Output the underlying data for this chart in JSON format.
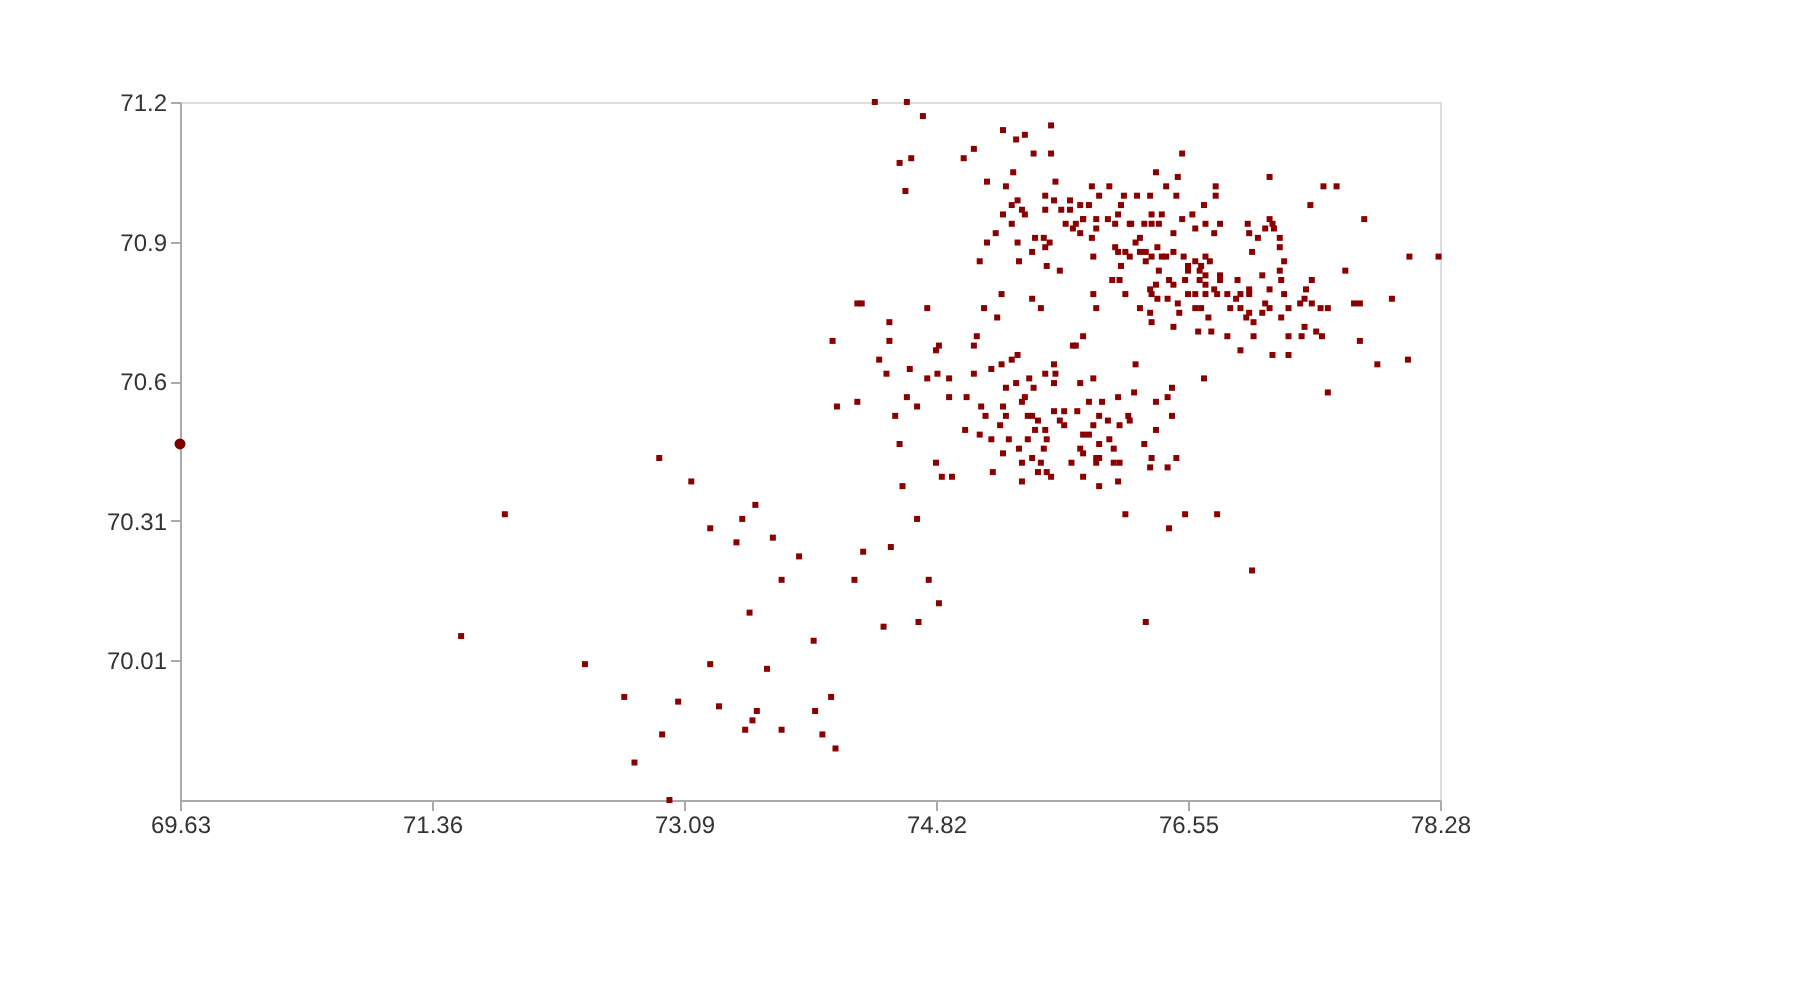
{
  "chart_data": {
    "type": "scatter",
    "xlim": [
      69.63,
      78.28
    ],
    "xticks": [
      69.63,
      71.36,
      73.09,
      74.82,
      76.55,
      78.28
    ],
    "ylim": [
      69.71,
      71.2
    ],
    "yticks": [
      {
        "value": 70.008,
        "label": "70.01"
      },
      {
        "value": 70.306,
        "label": "70.31"
      },
      {
        "value": 70.604,
        "label": "70.6"
      },
      {
        "value": 70.902,
        "label": "70.9"
      },
      71.2
    ],
    "grid": false,
    "series": [
      {
        "color": "#8b0000",
        "marker": "square",
        "x": [
          71.86,
          71.56,
          72.92,
          73.14,
          72.41,
          72.68,
          72.75,
          72.94,
          72.99,
          73.05,
          73.27,
          73.33,
          73.27,
          73.45,
          73.49,
          73.58,
          73.7,
          73.54,
          73.66,
          73.51,
          73.56,
          73.59,
          73.76,
          73.76,
          73.88,
          73.98,
          73.99,
          74.04,
          74.1,
          74.13,
          74.26,
          74.32,
          74.46,
          74.51,
          74.57,
          74.59,
          74.69,
          74.7,
          74.77,
          74.82,
          74.84,
          74.86,
          74.93,
          74.11,
          74.14,
          74.28,
          74.5,
          74.5,
          74.43,
          74.48,
          74.54,
          74.62,
          74.69,
          74.64,
          74.76,
          74.76,
          74.82,
          74.84,
          74.83,
          74.91,
          74.91,
          75.02,
          75.08,
          75.08,
          75.1,
          75.15,
          75.24,
          75.03,
          75.13,
          75.2,
          75.16,
          75.12,
          75.2,
          75.26,
          75.27,
          75.3,
          75.28,
          75.3,
          75.32,
          75.28,
          75.21,
          75.34,
          75.38,
          75.37,
          75.41,
          75.43,
          75.45,
          75.48,
          75.49,
          75.46,
          75.52,
          75.5,
          75.45,
          75.39,
          75.41,
          75.41,
          75.48,
          75.54,
          75.52,
          75.56,
          75.57,
          75.58,
          75.58,
          75.61,
          75.54,
          75.57,
          75.63,
          75.64,
          75.63,
          75.63,
          75.7,
          75.67,
          75.7,
          75.76,
          75.83,
          75.81,
          75.79,
          75.75,
          75.81,
          75.83,
          75.83,
          75.83,
          75.87,
          75.87,
          75.9,
          75.9,
          75.92,
          75.94,
          75.96,
          75.94,
          75.92,
          75.94,
          75.94,
          76.0,
          76.01,
          76.04,
          76.04,
          76.07,
          76.07,
          76.08,
          76.08,
          76.14,
          76.15,
          76.18,
          76.19,
          76.25,
          76.33,
          76.33,
          76.3,
          76.29,
          76.41,
          76.41,
          76.44,
          76.44,
          76.47,
          76.66,
          76.12,
          76.53,
          76.75,
          76.42,
          76.26,
          76.99,
          74.4,
          74.62,
          74.73,
          74.57,
          74.65,
          74.61,
          75.01,
          75.08,
          75.28,
          75.37,
          75.43,
          75.61,
          75.61,
          75.49,
          75.35,
          75.17,
          75.3,
          75.64,
          75.57,
          75.38,
          75.34,
          75.41,
          75.28,
          75.43,
          75.34,
          75.23,
          75.17,
          75.12,
          75.38,
          75.39,
          75.5,
          75.56,
          75.48,
          75.57,
          75.6,
          75.58,
          75.67,
          75.57,
          75.63,
          75.68,
          75.74,
          75.81,
          75.74,
          75.71,
          75.78,
          75.83,
          75.76,
          75.81,
          75.89,
          75.87,
          75.94,
          76.01,
          75.83,
          75.92,
          75.89,
          75.92,
          76.0,
          76.07,
          76.09,
          76.11,
          76.2,
          76.33,
          76.4,
          76.48,
          76.51,
          76.47,
          76.74,
          76.74,
          76.66,
          76.29,
          76.16,
          76.15,
          76.05,
          76.05,
          76.07,
          76.12,
          76.15,
          76.09,
          76.03,
          76.08,
          75.9,
          75.9,
          75.92,
          76.12,
          76.22,
          75.78,
          76.19,
          76.22,
          76.25,
          76.3,
          76.37,
          76.3,
          76.35,
          76.45,
          76.51,
          76.58,
          76.6,
          76.67,
          76.73,
          76.77,
          76.34,
          76.37,
          76.26,
          76.22,
          76.26,
          76.3,
          76.4,
          76.35,
          76.42,
          76.33,
          76.29,
          76.3,
          76.34,
          76.41,
          76.45,
          76.48,
          76.49,
          76.45,
          76.29,
          76.3,
          76.45,
          76.52,
          76.55,
          76.6,
          76.64,
          76.67,
          76.7,
          76.63,
          76.67,
          76.63,
          76.55,
          76.53,
          76.55,
          76.6,
          76.67,
          76.67,
          76.73,
          76.77,
          76.77,
          76.75,
          76.6,
          76.64,
          76.69,
          76.71,
          76.62,
          76.82,
          76.84,
          76.88,
          76.91,
          76.89,
          76.91,
          76.97,
          76.97,
          76.95,
          76.82,
          76.91,
          77.0,
          76.97,
          77.0,
          77.06,
          77.06,
          76.99,
          76.97,
          77.03,
          76.96,
          77.11,
          77.13,
          77.08,
          77.14,
          77.18,
          77.18,
          77.21,
          77.18,
          77.19,
          77.11,
          77.08,
          77.11,
          77.21,
          77.24,
          77.19,
          77.24,
          77.13,
          77.24,
          77.11,
          77.39,
          77.48,
          77.57,
          77.4,
          77.36,
          77.35,
          77.4,
          77.32,
          77.51,
          77.46,
          77.35,
          77.43,
          77.33,
          77.47,
          77.63,
          77.76,
          77.69,
          77.73,
          77.73,
          77.85,
          77.51,
          77.95,
          78.06,
          78.07,
          78.27,
          74.28,
          74.31,
          75.27,
          75.48
        ],
        "values": [
          70.32,
          70.06,
          70.44,
          70.39,
          70.0,
          69.93,
          69.79,
          69.85,
          69.71,
          69.92,
          70.0,
          69.91,
          70.29,
          70.26,
          70.31,
          70.34,
          70.27,
          70.11,
          69.99,
          69.86,
          69.88,
          69.9,
          70.18,
          69.86,
          70.23,
          70.05,
          69.9,
          69.85,
          69.93,
          69.82,
          70.18,
          70.24,
          70.08,
          70.25,
          70.47,
          70.38,
          70.31,
          70.09,
          70.18,
          70.43,
          70.13,
          70.4,
          70.4,
          70.69,
          70.55,
          70.56,
          70.73,
          70.69,
          70.65,
          70.62,
          70.53,
          70.57,
          70.55,
          70.63,
          70.61,
          70.76,
          70.67,
          70.68,
          70.62,
          70.61,
          70.57,
          70.5,
          70.62,
          70.68,
          70.7,
          70.76,
          70.74,
          70.57,
          70.55,
          70.63,
          70.53,
          70.49,
          70.48,
          70.51,
          70.64,
          70.59,
          70.55,
          70.53,
          70.48,
          70.45,
          70.41,
          70.65,
          70.66,
          70.6,
          70.56,
          70.57,
          70.53,
          70.53,
          70.59,
          70.61,
          70.52,
          70.5,
          70.48,
          70.46,
          70.43,
          70.39,
          70.44,
          70.43,
          70.41,
          70.46,
          70.5,
          70.48,
          70.41,
          70.4,
          70.76,
          70.62,
          70.64,
          70.62,
          70.6,
          70.54,
          70.54,
          70.52,
          70.51,
          70.68,
          70.7,
          70.6,
          70.54,
          70.43,
          70.46,
          70.49,
          70.45,
          70.4,
          70.49,
          70.56,
          70.61,
          70.51,
          70.44,
          70.53,
          70.56,
          70.44,
          70.43,
          70.47,
          70.38,
          70.52,
          70.48,
          70.46,
          70.43,
          70.39,
          70.57,
          70.43,
          70.51,
          70.53,
          70.52,
          70.58,
          70.64,
          70.47,
          70.56,
          70.5,
          70.44,
          70.42,
          70.57,
          70.42,
          70.59,
          70.53,
          70.44,
          70.61,
          70.32,
          70.32,
          70.32,
          70.29,
          70.09,
          70.2,
          71.2,
          71.2,
          71.17,
          71.07,
          71.08,
          71.01,
          71.08,
          71.1,
          71.14,
          71.12,
          71.13,
          71.15,
          71.09,
          71.09,
          71.05,
          71.03,
          71.02,
          71.03,
          71.0,
          70.99,
          70.98,
          70.97,
          70.96,
          70.96,
          70.94,
          70.92,
          70.9,
          70.86,
          70.9,
          70.86,
          70.91,
          70.91,
          70.88,
          70.89,
          70.9,
          70.85,
          70.84,
          70.97,
          70.99,
          70.97,
          70.99,
          70.98,
          70.97,
          70.94,
          70.94,
          70.95,
          70.93,
          70.92,
          71.02,
          70.98,
          71.0,
          71.02,
          70.95,
          70.93,
          70.91,
          70.95,
          70.95,
          70.96,
          70.98,
          71.0,
          71.0,
          71.05,
          71.02,
          71.04,
          71.09,
          71.0,
          71.02,
          71.0,
          70.98,
          71.0,
          70.94,
          70.94,
          70.94,
          70.89,
          70.88,
          70.88,
          70.87,
          70.85,
          70.82,
          70.82,
          70.87,
          70.79,
          70.76,
          70.79,
          70.76,
          70.68,
          70.9,
          70.91,
          70.94,
          70.96,
          70.96,
          70.94,
          70.94,
          70.92,
          70.95,
          70.96,
          70.93,
          70.94,
          70.92,
          70.94,
          70.89,
          70.87,
          70.88,
          70.88,
          70.86,
          70.87,
          70.87,
          70.84,
          70.82,
          70.81,
          70.8,
          70.79,
          70.78,
          70.78,
          70.81,
          70.77,
          70.75,
          70.72,
          70.75,
          70.73,
          70.88,
          70.87,
          70.85,
          70.86,
          70.85,
          70.87,
          70.86,
          70.84,
          70.83,
          70.82,
          70.84,
          70.82,
          70.79,
          70.79,
          70.81,
          70.79,
          70.8,
          70.83,
          70.82,
          70.79,
          70.76,
          70.76,
          70.74,
          70.71,
          70.71,
          70.79,
          70.76,
          70.78,
          70.76,
          70.82,
          70.79,
          70.8,
          70.79,
          70.74,
          70.7,
          70.67,
          70.7,
          70.75,
          70.73,
          70.75,
          70.83,
          70.88,
          70.92,
          70.91,
          70.94,
          70.95,
          70.94,
          70.93,
          70.93,
          70.91,
          70.89,
          70.86,
          70.84,
          70.82,
          70.8,
          70.77,
          70.76,
          70.79,
          70.76,
          70.74,
          70.7,
          70.66,
          70.66,
          71.04,
          70.98,
          71.02,
          71.02,
          70.82,
          70.8,
          70.78,
          70.77,
          70.77,
          70.76,
          70.76,
          70.72,
          70.71,
          70.7,
          70.7,
          70.84,
          70.95,
          70.77,
          70.77,
          70.69,
          70.64,
          70.58,
          70.78,
          70.65,
          70.87,
          70.87,
          70.77,
          70.77,
          70.79,
          70.78
        ]
      },
      {
        "color": "#800000",
        "marker": "circle",
        "x": [
          69.63
        ],
        "values": [
          70.47
        ]
      }
    ]
  }
}
